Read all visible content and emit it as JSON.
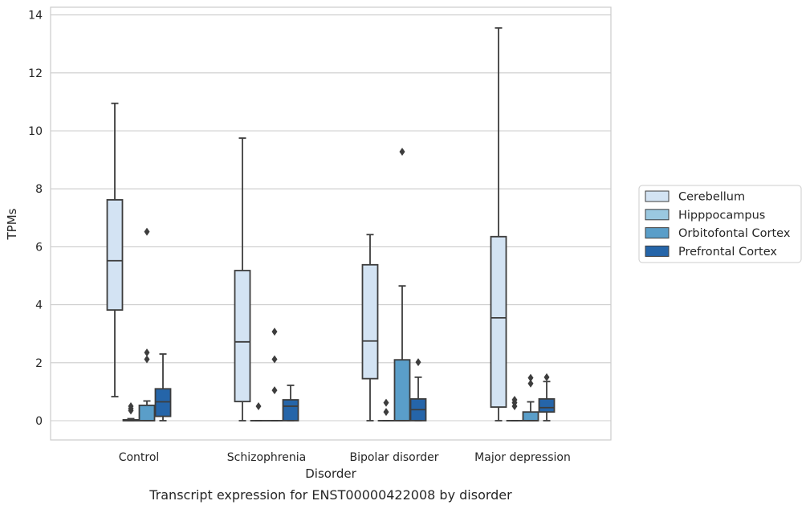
{
  "chart_data": {
    "type": "box",
    "title": "",
    "caption": "Transcript expression for ENST00000422008 by disorder",
    "xlabel": "Disorder",
    "ylabel": "TPMs",
    "ylim": [
      -0.65,
      14.25
    ],
    "yticks": [
      "0",
      "2",
      "4",
      "6",
      "8",
      "10",
      "12",
      "14"
    ],
    "grid": true,
    "legend_position": "right",
    "categories": [
      "Control",
      "Schizophrenia",
      "Bipolar disorder",
      "Major depression"
    ],
    "series": [
      {
        "name": "Cerebellum",
        "color": "#d3e3f3",
        "boxes": [
          {
            "whisker_low": 0.83,
            "q1": 3.82,
            "median": 5.52,
            "q3": 7.62,
            "whisker_high": 10.95,
            "outliers": []
          },
          {
            "whisker_low": 0.0,
            "q1": 0.66,
            "median": 2.72,
            "q3": 5.18,
            "whisker_high": 9.75,
            "outliers": []
          },
          {
            "whisker_low": 0.0,
            "q1": 1.45,
            "median": 2.75,
            "q3": 5.38,
            "whisker_high": 6.42,
            "outliers": []
          },
          {
            "whisker_low": 0.0,
            "q1": 0.47,
            "median": 3.55,
            "q3": 6.35,
            "whisker_high": 13.55,
            "outliers": []
          }
        ]
      },
      {
        "name": "Hipppocampus",
        "color": "#9ac8e0",
        "boxes": [
          {
            "whisker_low": 0.0,
            "q1": 0.0,
            "median": 0.0,
            "q3": 0.03,
            "whisker_high": 0.07,
            "outliers": [
              0.35,
              0.42,
              0.5
            ]
          },
          {
            "whisker_low": 0.0,
            "q1": 0.0,
            "median": 0.0,
            "q3": 0.0,
            "whisker_high": 0.0,
            "outliers": [
              0.5
            ]
          },
          {
            "whisker_low": 0.0,
            "q1": 0.0,
            "median": 0.0,
            "q3": 0.0,
            "whisker_high": 0.0,
            "outliers": [
              0.3,
              0.62
            ]
          },
          {
            "whisker_low": 0.0,
            "q1": 0.0,
            "median": 0.0,
            "q3": 0.0,
            "whisker_high": 0.0,
            "outliers": [
              0.5,
              0.62,
              0.72
            ]
          }
        ]
      },
      {
        "name": "Orbitofontal Cortex",
        "color": "#5a9ec9",
        "boxes": [
          {
            "whisker_low": 0.0,
            "q1": 0.0,
            "median": 0.0,
            "q3": 0.53,
            "whisker_high": 0.68,
            "outliers": [
              2.12,
              2.35,
              6.52
            ]
          },
          {
            "whisker_low": 0.0,
            "q1": 0.0,
            "median": 0.0,
            "q3": 0.0,
            "whisker_high": 0.0,
            "outliers": [
              1.05,
              2.12,
              3.07
            ]
          },
          {
            "whisker_low": 0.0,
            "q1": 0.0,
            "median": 0.0,
            "q3": 2.1,
            "whisker_high": 4.65,
            "outliers": [
              9.28
            ]
          },
          {
            "whisker_low": 0.0,
            "q1": 0.0,
            "median": 0.0,
            "q3": 0.3,
            "whisker_high": 0.65,
            "outliers": [
              1.28,
              1.48
            ]
          }
        ]
      },
      {
        "name": "Prefrontal Cortex",
        "color": "#2565a9",
        "boxes": [
          {
            "whisker_low": 0.0,
            "q1": 0.15,
            "median": 0.65,
            "q3": 1.1,
            "whisker_high": 2.3,
            "outliers": []
          },
          {
            "whisker_low": 0.0,
            "q1": 0.0,
            "median": 0.5,
            "q3": 0.72,
            "whisker_high": 1.22,
            "outliers": []
          },
          {
            "whisker_low": 0.0,
            "q1": 0.0,
            "median": 0.38,
            "q3": 0.75,
            "whisker_high": 1.5,
            "outliers": [
              2.02
            ]
          },
          {
            "whisker_low": 0.0,
            "q1": 0.3,
            "median": 0.45,
            "q3": 0.75,
            "whisker_high": 1.35,
            "outliers": [
              1.5
            ]
          }
        ]
      }
    ]
  }
}
